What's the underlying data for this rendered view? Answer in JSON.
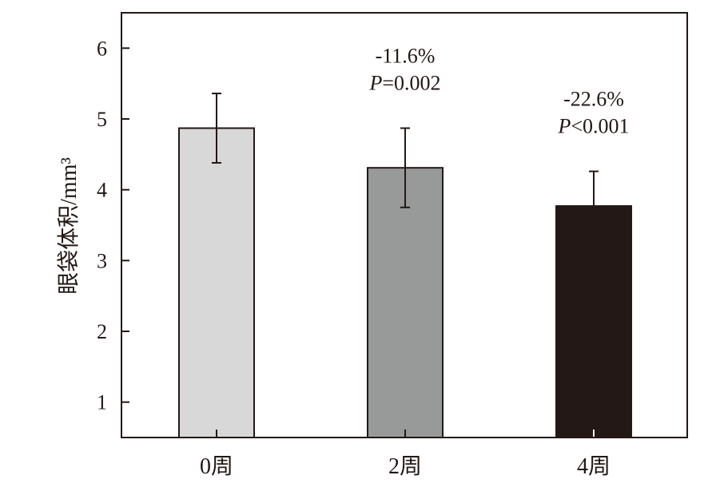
{
  "chart_data": {
    "type": "bar",
    "categories": [
      "0周",
      "2周",
      "4周"
    ],
    "values": [
      4.87,
      4.31,
      3.77
    ],
    "errors": [
      0.49,
      0.56,
      0.49
    ],
    "bar_colors": [
      "#d8d8d8",
      "#989a99",
      "#231815"
    ],
    "ylabel": "眼袋体积/mm³",
    "xlabel": "",
    "title": "",
    "ylim": [
      0.5,
      6.5
    ],
    "yticks": [
      "1",
      "2",
      "3",
      "4",
      "5",
      "6"
    ],
    "annotations": [
      {
        "category": "2周",
        "change": "-11.6%",
        "p_label": "P",
        "p_value": "=0.002"
      },
      {
        "category": "4周",
        "change": "-22.6%",
        "p_label": "P",
        "p_value": "<0.001"
      }
    ],
    "grid": false,
    "legend": "none"
  }
}
